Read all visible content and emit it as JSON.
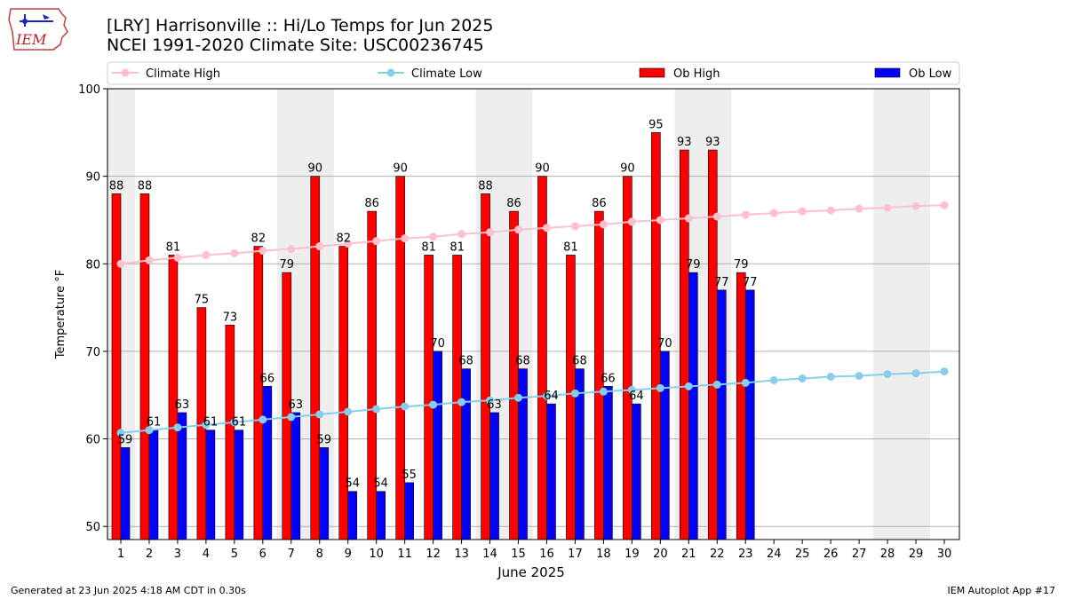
{
  "header": {
    "logo_text": "IEM",
    "title_line1": "[LRY] Harrisonville :: Hi/Lo Temps for Jun 2025",
    "title_line2": "NCEI 1991-2020 Climate Site: USC00236745"
  },
  "footer": {
    "generated": "Generated at 23 Jun 2025 4:18 AM CDT in 0.30s",
    "app": "IEM Autoplot App #17"
  },
  "chart_data": {
    "type": "bar",
    "xlabel": "June 2025",
    "ylabel": "Temperature °F",
    "ylim": [
      48.5,
      100
    ],
    "yticks": [
      50,
      60,
      70,
      80,
      90,
      100
    ],
    "grid": "horizontal",
    "legend_position": "top",
    "weekend_shading": true,
    "categories": [
      1,
      2,
      3,
      4,
      5,
      6,
      7,
      8,
      9,
      10,
      11,
      12,
      13,
      14,
      15,
      16,
      17,
      18,
      19,
      20,
      21,
      22,
      23,
      24,
      25,
      26,
      27,
      28,
      29,
      30
    ],
    "weekend_days": [
      1,
      7,
      8,
      14,
      15,
      21,
      22,
      28,
      29
    ],
    "series": [
      {
        "name": "Climate High",
        "kind": "line",
        "color": "#ffc0cb",
        "values": [
          80.0,
          80.4,
          80.7,
          81.0,
          81.2,
          81.5,
          81.7,
          82.0,
          82.3,
          82.6,
          82.9,
          83.1,
          83.4,
          83.6,
          83.9,
          84.1,
          84.3,
          84.5,
          84.8,
          85.0,
          85.2,
          85.4,
          85.6,
          85.8,
          86.0,
          86.1,
          86.3,
          86.4,
          86.6,
          86.7
        ]
      },
      {
        "name": "Climate Low",
        "kind": "line",
        "color": "#87ceeb",
        "values": [
          60.7,
          61.0,
          61.3,
          61.6,
          61.9,
          62.2,
          62.5,
          62.8,
          63.1,
          63.4,
          63.7,
          63.9,
          64.2,
          64.4,
          64.7,
          64.9,
          65.2,
          65.4,
          65.6,
          65.8,
          66.0,
          66.2,
          66.4,
          66.7,
          66.9,
          67.1,
          67.2,
          67.4,
          67.5,
          67.7
        ]
      },
      {
        "name": "Ob High",
        "kind": "bar",
        "color": "#ff0000",
        "values": [
          88,
          88,
          81,
          75,
          73,
          82,
          79,
          90,
          82,
          86,
          90,
          81,
          81,
          88,
          86,
          90,
          81,
          86,
          90,
          95,
          93,
          93,
          79,
          null,
          null,
          null,
          null,
          null,
          null,
          null
        ]
      },
      {
        "name": "Ob Low",
        "kind": "bar",
        "color": "#0000ff",
        "values": [
          59,
          61,
          63,
          61,
          61,
          66,
          63,
          59,
          54,
          54,
          55,
          70,
          68,
          63,
          68,
          64,
          68,
          66,
          64,
          70,
          79,
          77,
          77,
          null,
          null,
          null,
          null,
          null,
          null,
          null
        ]
      }
    ]
  }
}
